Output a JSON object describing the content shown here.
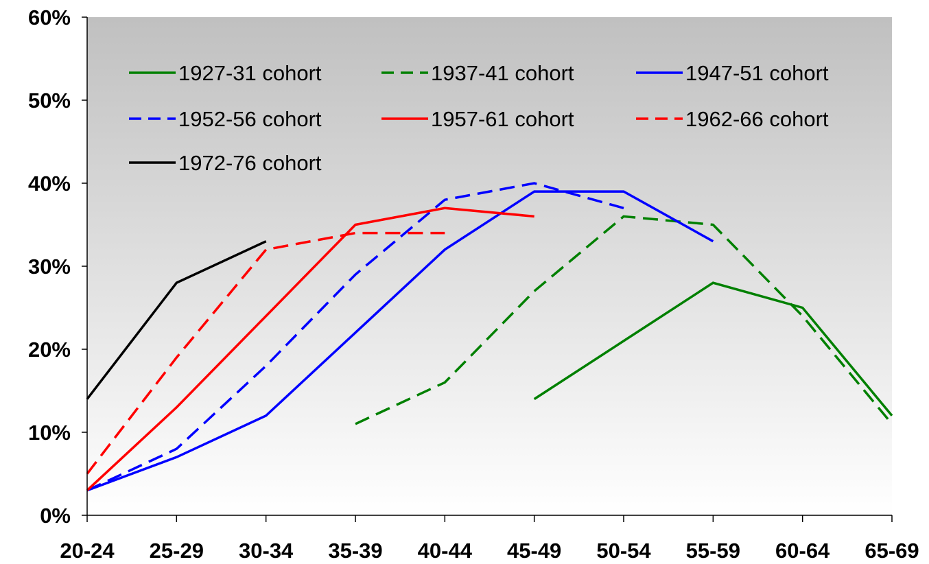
{
  "chart_data": {
    "type": "line",
    "title": "",
    "xlabel": "",
    "ylabel": "",
    "categories": [
      "20-24",
      "25-29",
      "30-34",
      "35-39",
      "40-44",
      "45-49",
      "50-54",
      "55-59",
      "60-64",
      "65-69"
    ],
    "y_tick_labels": [
      "0%",
      "10%",
      "20%",
      "30%",
      "40%",
      "50%",
      "60%"
    ],
    "ylim": [
      0,
      60
    ],
    "y_unit": "%",
    "grid": false,
    "legend_position": "top",
    "background": "vertical gradient, grey at top fading to white at bottom",
    "series": [
      {
        "name": "1927-31 cohort",
        "color": "#008000",
        "dash": "solid",
        "values": [
          null,
          null,
          null,
          null,
          null,
          14,
          21,
          28,
          25,
          12
        ]
      },
      {
        "name": "1937-41 cohort",
        "color": "#008000",
        "dash": "dashed",
        "values": [
          null,
          null,
          null,
          11,
          16,
          27,
          36,
          35,
          24,
          11
        ]
      },
      {
        "name": "1947-51 cohort",
        "color": "#0000ff",
        "dash": "solid",
        "values": [
          3,
          7,
          12,
          22,
          32,
          39,
          39,
          33,
          null,
          null
        ]
      },
      {
        "name": "1952-56 cohort",
        "color": "#0000ff",
        "dash": "dashed",
        "values": [
          3,
          8,
          18,
          29,
          38,
          40,
          37,
          null,
          null,
          null
        ]
      },
      {
        "name": "1957-61 cohort",
        "color": "#ff0000",
        "dash": "solid",
        "values": [
          3,
          13,
          24,
          35,
          37,
          36,
          null,
          null,
          null,
          null
        ]
      },
      {
        "name": "1962-66 cohort",
        "color": "#ff0000",
        "dash": "dashed",
        "values": [
          5,
          19,
          32,
          34,
          34,
          null,
          null,
          null,
          null,
          null
        ]
      },
      {
        "name": "1972-76 cohort",
        "color": "#000000",
        "dash": "solid",
        "values": [
          14,
          28,
          33,
          null,
          null,
          null,
          null,
          null,
          null,
          null
        ]
      }
    ]
  }
}
